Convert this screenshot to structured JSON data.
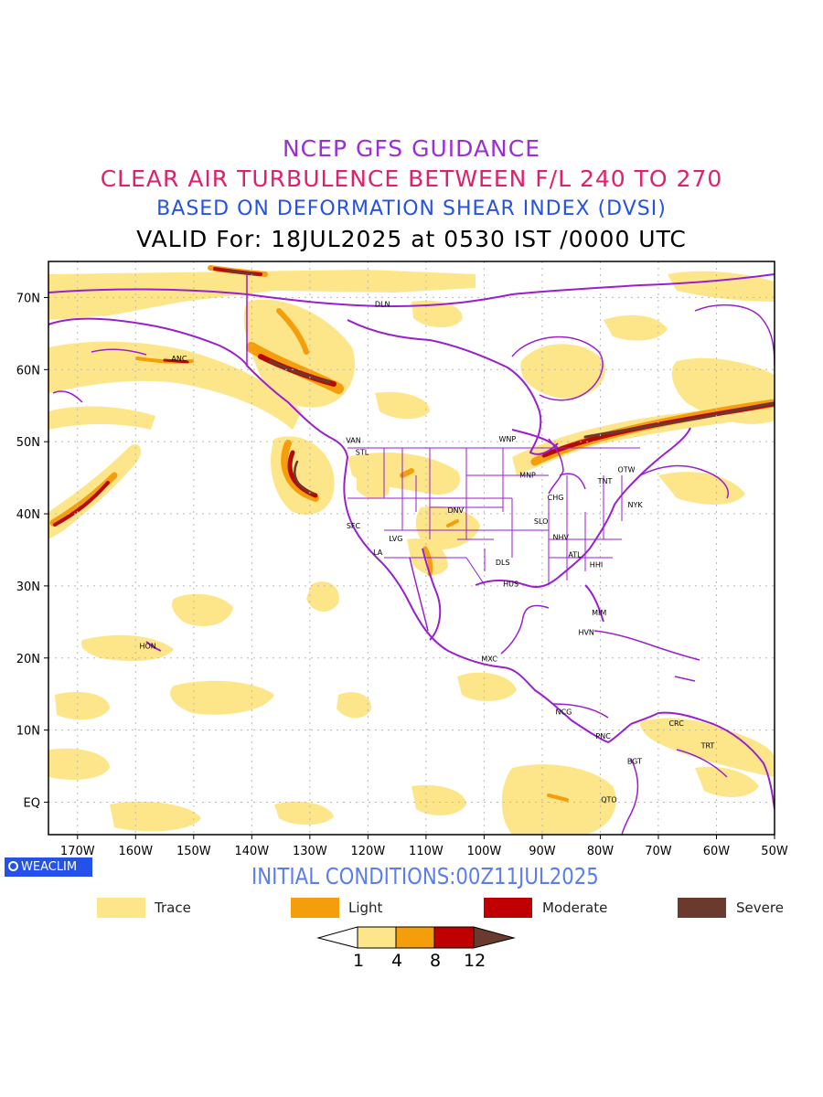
{
  "title": {
    "line1": "NCEP GFS GUIDANCE",
    "line2": "CLEAR AIR TURBULENCE BETWEEN F/L 240 TO 270",
    "line3": "BASED ON DEFORMATION SHEAR INDEX (DVSI)",
    "line4": "VALID For: 18JUL2025 at 0530 IST /0000 UTC"
  },
  "colors": {
    "title1": "#9a2fd6",
    "title2": "#e0206e",
    "title3": "#2552e6",
    "coast": "#9a1fd0",
    "trace": "#fde68a",
    "light": "#f59e0b",
    "moderate": "#b80808",
    "severe": "#6b3a2e"
  },
  "map": {
    "lat_labels": [
      "70N",
      "60N",
      "50N",
      "40N",
      "30N",
      "20N",
      "10N",
      "EQ"
    ],
    "lon_labels": [
      "170W",
      "160W",
      "150W",
      "140W",
      "130W",
      "120W",
      "110W",
      "100W",
      "90W",
      "80W",
      "70W",
      "60W",
      "50W"
    ],
    "lon_range": [
      -175,
      -50
    ],
    "lat_range": [
      -4.5,
      75
    ],
    "stations": [
      {
        "code": "DLN",
        "lon": -117.5,
        "lat": 68.7
      },
      {
        "code": "ANC",
        "lon": -152.5,
        "lat": 61.2
      },
      {
        "code": "VAN",
        "lon": -122.5,
        "lat": 49.8
      },
      {
        "code": "STL",
        "lon": -121.0,
        "lat": 48.2
      },
      {
        "code": "WNP",
        "lon": -96.0,
        "lat": 50.0
      },
      {
        "code": "MNP",
        "lon": -92.5,
        "lat": 45.0
      },
      {
        "code": "TNT",
        "lon": -79.2,
        "lat": 44.2
      },
      {
        "code": "OTW",
        "lon": -75.5,
        "lat": 45.8
      },
      {
        "code": "CHG",
        "lon": -87.7,
        "lat": 41.9
      },
      {
        "code": "NYK",
        "lon": -74.0,
        "lat": 40.9
      },
      {
        "code": "DNV",
        "lon": -104.9,
        "lat": 40.1
      },
      {
        "code": "SFC",
        "lon": -122.5,
        "lat": 38.0
      },
      {
        "code": "SLO",
        "lon": -90.2,
        "lat": 38.6
      },
      {
        "code": "LVG",
        "lon": -115.2,
        "lat": 36.2
      },
      {
        "code": "NHV",
        "lon": -86.8,
        "lat": 36.4
      },
      {
        "code": "LA",
        "lon": -118.3,
        "lat": 34.3
      },
      {
        "code": "ATL",
        "lon": -84.4,
        "lat": 34.0
      },
      {
        "code": "DLS",
        "lon": -96.8,
        "lat": 32.9
      },
      {
        "code": "HHI",
        "lon": -80.7,
        "lat": 32.6
      },
      {
        "code": "HUS",
        "lon": -95.4,
        "lat": 29.9
      },
      {
        "code": "MIM",
        "lon": -80.2,
        "lat": 25.9
      },
      {
        "code": "HVN",
        "lon": -82.4,
        "lat": 23.2
      },
      {
        "code": "HON",
        "lon": -157.9,
        "lat": 21.3
      },
      {
        "code": "MXC",
        "lon": -99.1,
        "lat": 19.5
      },
      {
        "code": "NCG",
        "lon": -86.3,
        "lat": 12.2
      },
      {
        "code": "CRC",
        "lon": -66.9,
        "lat": 10.6
      },
      {
        "code": "PNC",
        "lon": -79.5,
        "lat": 8.8
      },
      {
        "code": "TRT",
        "lon": -61.5,
        "lat": 7.5
      },
      {
        "code": "BGT",
        "lon": -74.1,
        "lat": 5.3
      },
      {
        "code": "QTO",
        "lon": -78.5,
        "lat": 0.0
      }
    ]
  },
  "badge": {
    "label": "WEACLIM"
  },
  "initial_conditions": "INITIAL CONDITIONS:00Z11JUL2025",
  "legend": {
    "trace": "Trace",
    "light": "Light",
    "moderate": "Moderate",
    "severe": "Severe"
  },
  "colorbar": {
    "ticks": [
      "1",
      "4",
      "8",
      "12"
    ]
  }
}
